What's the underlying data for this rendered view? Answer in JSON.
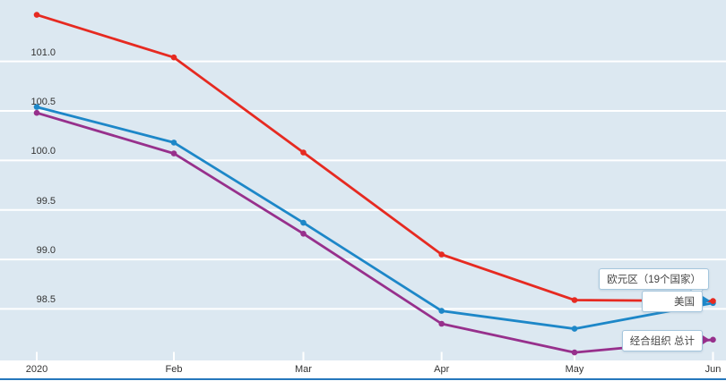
{
  "chart_data": {
    "type": "line",
    "categories": [
      "2020",
      "Feb",
      "Mar",
      "Apr",
      "May",
      "Jun"
    ],
    "series": [
      {
        "name": "欧元区（19个国家）",
        "color": "#e62a21",
        "values": [
          101.47,
          101.04,
          100.08,
          99.05,
          98.59,
          98.58
        ]
      },
      {
        "name": "美国",
        "color": "#1d87c8",
        "values": [
          100.54,
          100.18,
          99.37,
          98.48,
          98.3,
          98.56
        ]
      },
      {
        "name": "经合组织 总计",
        "color": "#97308c",
        "values": [
          100.48,
          100.07,
          99.26,
          98.35,
          98.06,
          98.19
        ]
      }
    ],
    "yticks": [
      101.0,
      100.5,
      100.0,
      99.5,
      99.0,
      98.5
    ],
    "ytick_labels": [
      "101.0",
      "100.5",
      "100.0",
      "99.5",
      "99.0",
      "98.5"
    ],
    "ylim": [
      97.98,
      101.62
    ],
    "grid": true,
    "legend_position": "end-of-line-callouts"
  },
  "colors": {
    "plot_background": "#dce8f1",
    "gridline": "#ffffff",
    "tick_mark": "#ffffff",
    "axis_text": "#333333",
    "callout_border": "#a5c6dd",
    "callout_background": "#ffffff",
    "axis_strip_background": "#ffffff",
    "bottom_border": "#2577bc"
  }
}
